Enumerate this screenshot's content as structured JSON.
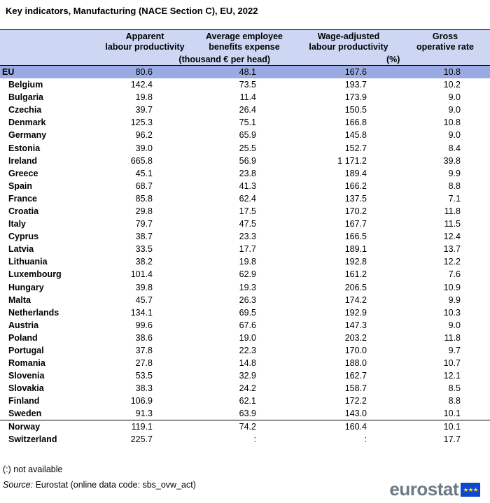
{
  "title": "Key indicators, Manufacturing (NACE Section C), EU, 2022",
  "columns": [
    "Apparent labour productivity",
    "Average employee benefits expense",
    "Wage-adjusted labour productivity",
    "Gross operative rate"
  ],
  "column_lines": [
    [
      "Apparent",
      "labour productivity"
    ],
    [
      "Average employee",
      "benefits expense"
    ],
    [
      "Wage-adjusted",
      "labour productivity"
    ],
    [
      "Gross",
      "operative rate"
    ]
  ],
  "units": {
    "group1": "(thousand € per head)",
    "group2": "(%)"
  },
  "rows": [
    {
      "name": "EU",
      "values": [
        "80.6",
        "48.1",
        "167.6",
        "10.8"
      ]
    },
    {
      "name": "Belgium",
      "values": [
        "142.4",
        "73.5",
        "193.7",
        "10.2"
      ]
    },
    {
      "name": "Bulgaria",
      "values": [
        "19.8",
        "11.4",
        "173.9",
        "9.0"
      ]
    },
    {
      "name": "Czechia",
      "values": [
        "39.7",
        "26.4",
        "150.5",
        "9.0"
      ]
    },
    {
      "name": "Denmark",
      "values": [
        "125.3",
        "75.1",
        "166.8",
        "10.8"
      ]
    },
    {
      "name": "Germany",
      "values": [
        "96.2",
        "65.9",
        "145.8",
        "9.0"
      ]
    },
    {
      "name": "Estonia",
      "values": [
        "39.0",
        "25.5",
        "152.7",
        "8.4"
      ]
    },
    {
      "name": "Ireland",
      "values": [
        "665.8",
        "56.9",
        "1 171.2",
        "39.8"
      ]
    },
    {
      "name": "Greece",
      "values": [
        "45.1",
        "23.8",
        "189.4",
        "9.9"
      ]
    },
    {
      "name": "Spain",
      "values": [
        "68.7",
        "41.3",
        "166.2",
        "8.8"
      ]
    },
    {
      "name": "France",
      "values": [
        "85.8",
        "62.4",
        "137.5",
        "7.1"
      ]
    },
    {
      "name": "Croatia",
      "values": [
        "29.8",
        "17.5",
        "170.2",
        "11.8"
      ]
    },
    {
      "name": "Italy",
      "values": [
        "79.7",
        "47.5",
        "167.7",
        "11.5"
      ]
    },
    {
      "name": "Cyprus",
      "values": [
        "38.7",
        "23.3",
        "166.5",
        "12.4"
      ]
    },
    {
      "name": "Latvia",
      "values": [
        "33.5",
        "17.7",
        "189.1",
        "13.7"
      ]
    },
    {
      "name": "Lithuania",
      "values": [
        "38.2",
        "19.8",
        "192.8",
        "12.2"
      ]
    },
    {
      "name": "Luxembourg",
      "values": [
        "101.4",
        "62.9",
        "161.2",
        "7.6"
      ]
    },
    {
      "name": "Hungary",
      "values": [
        "39.8",
        "19.3",
        "206.5",
        "10.9"
      ]
    },
    {
      "name": "Malta",
      "values": [
        "45.7",
        "26.3",
        "174.2",
        "9.9"
      ]
    },
    {
      "name": "Netherlands",
      "values": [
        "134.1",
        "69.5",
        "192.9",
        "10.3"
      ]
    },
    {
      "name": "Austria",
      "values": [
        "99.6",
        "67.6",
        "147.3",
        "9.0"
      ]
    },
    {
      "name": "Poland",
      "values": [
        "38.6",
        "19.0",
        "203.2",
        "11.8"
      ]
    },
    {
      "name": "Portugal",
      "values": [
        "37.8",
        "22.3",
        "170.0",
        "9.7"
      ]
    },
    {
      "name": "Romania",
      "values": [
        "27.8",
        "14.8",
        "188.0",
        "10.7"
      ]
    },
    {
      "name": "Slovenia",
      "values": [
        "53.5",
        "32.9",
        "162.7",
        "12.1"
      ]
    },
    {
      "name": "Slovakia",
      "values": [
        "38.3",
        "24.2",
        "158.7",
        "8.5"
      ]
    },
    {
      "name": "Finland",
      "values": [
        "106.9",
        "62.1",
        "172.2",
        "8.8"
      ]
    },
    {
      "name": "Sweden",
      "values": [
        "91.3",
        "63.9",
        "143.0",
        "10.1"
      ]
    },
    {
      "name": "Norway",
      "values": [
        "119.1",
        "74.2",
        "160.4",
        "10.1"
      ]
    },
    {
      "name": "Switzerland",
      "values": [
        "225.7",
        ":",
        ":",
        "17.7"
      ]
    }
  ],
  "separator_before": "Norway",
  "footnote": "(:) not available",
  "source_label": "Source:",
  "source_text": "Eurostat (online data code: sbs_ovw_act)",
  "logo_text": "eurostat",
  "logo_flag_stars": "★★★",
  "colors": {
    "header_bg": "#cdd7f4",
    "eu_row_bg": "#9aabe4",
    "logo_text": "#6d7a86",
    "flag_blue": "#0e47cb",
    "flag_star": "#ffd617"
  }
}
